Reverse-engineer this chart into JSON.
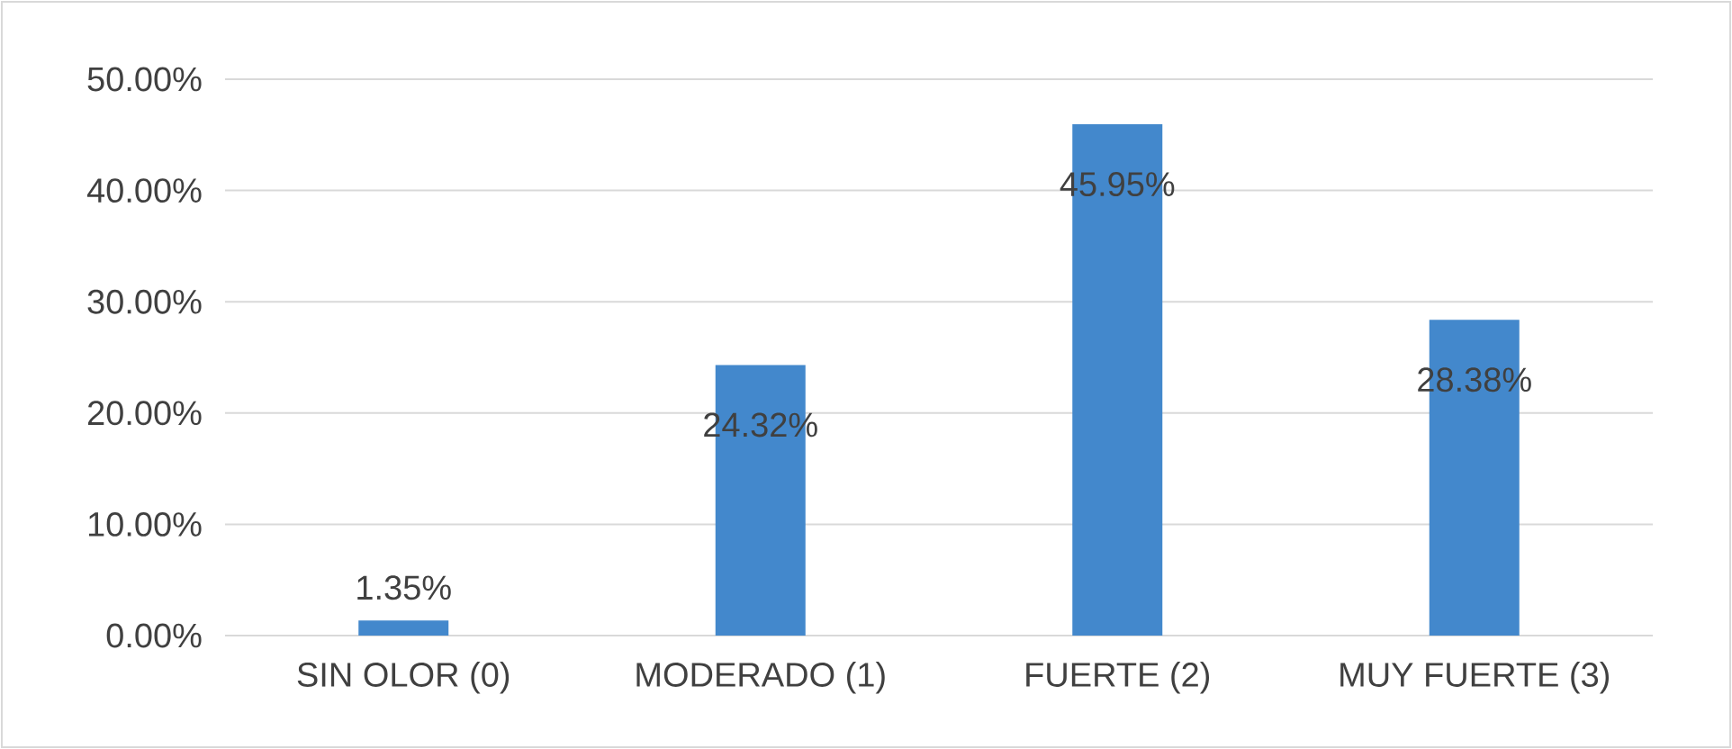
{
  "chart_data": {
    "type": "bar",
    "categories": [
      "SIN OLOR (0)",
      "MODERADO (1)",
      "FUERTE (2)",
      "MUY FUERTE (3)"
    ],
    "values": [
      1.35,
      24.32,
      45.95,
      28.38
    ],
    "value_labels": [
      "1.35%",
      "24.32%",
      "45.95%",
      "28.38%"
    ],
    "color": "#4388cc",
    "ylim": [
      0,
      50
    ],
    "yticks": [
      {
        "value": 0,
        "label": "0.00%"
      },
      {
        "value": 10,
        "label": "10.00%"
      },
      {
        "value": 20,
        "label": "20.00%"
      },
      {
        "value": 30,
        "label": "30.00%"
      },
      {
        "value": 40,
        "label": "40.00%"
      },
      {
        "value": 50,
        "label": "50.00%"
      }
    ],
    "grid": "y"
  }
}
